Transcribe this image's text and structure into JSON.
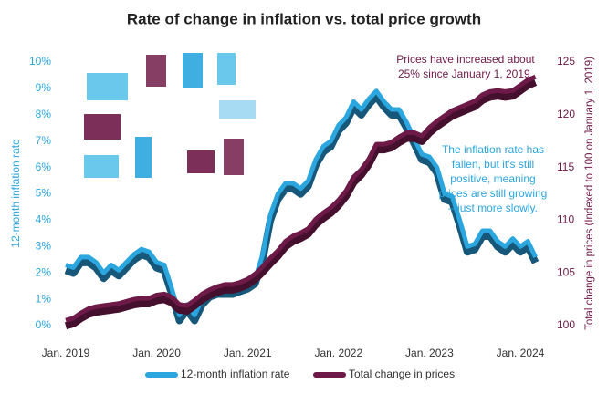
{
  "chart_data": {
    "type": "line",
    "title": "Rate of change in inflation vs. total price growth",
    "y_label": "12-month inflation rate",
    "y2_label": "Total change in prices (Indexed to 100 on January 1, 2019)",
    "categories": [
      "Jan. 2019",
      null,
      null,
      null,
      null,
      null,
      null,
      null,
      null,
      null,
      null,
      null,
      "Jan. 2020",
      null,
      null,
      null,
      null,
      null,
      null,
      null,
      null,
      null,
      null,
      null,
      "Jan. 2021",
      null,
      null,
      null,
      null,
      null,
      null,
      null,
      null,
      null,
      null,
      null,
      "Jan. 2022",
      null,
      null,
      null,
      null,
      null,
      null,
      null,
      null,
      null,
      null,
      null,
      "Jan. 2023",
      null,
      null,
      null,
      null,
      null,
      null,
      null,
      null,
      null,
      null,
      null,
      "Jan. 2024",
      null,
      null
    ],
    "series": [
      {
        "name": "12-month inflation rate",
        "color": "#2ba6de",
        "shadow": "#17587a",
        "axis": "y",
        "values": [
          2.3,
          2.2,
          2.6,
          2.6,
          2.4,
          2.0,
          2.3,
          2.1,
          2.4,
          2.7,
          2.9,
          2.8,
          2.4,
          2.3,
          1.4,
          0.4,
          0.8,
          0.4,
          1.0,
          1.3,
          1.4,
          1.4,
          1.4,
          1.5,
          1.6,
          1.8,
          2.7,
          4.2,
          5.0,
          5.4,
          5.4,
          5.2,
          5.5,
          6.3,
          6.8,
          7.0,
          7.6,
          7.9,
          8.5,
          8.2,
          8.6,
          8.9,
          8.5,
          8.2,
          8.2,
          7.7,
          7.1,
          6.5,
          6.4,
          6.0,
          5.0,
          4.9,
          4.0,
          3.0,
          3.1,
          3.6,
          3.6,
          3.2,
          3.0,
          3.3,
          3.0,
          3.2,
          2.6
        ]
      },
      {
        "name": "Total change in prices",
        "color": "#6e1a48",
        "shadow": "#45102d",
        "axis": "y2",
        "values": [
          100.5,
          100.7,
          101.2,
          101.6,
          101.8,
          101.9,
          102.0,
          102.1,
          102.3,
          102.5,
          102.6,
          102.6,
          102.9,
          103.0,
          102.7,
          102.0,
          101.9,
          102.4,
          103.0,
          103.4,
          103.7,
          103.9,
          103.9,
          104.1,
          104.4,
          104.9,
          105.6,
          106.4,
          107.1,
          108.0,
          108.5,
          108.8,
          109.2,
          110.1,
          110.7,
          111.2,
          111.9,
          112.8,
          114.1,
          114.8,
          115.8,
          117.2,
          117.2,
          117.4,
          117.9,
          118.3,
          118.3,
          118.0,
          118.8,
          119.4,
          119.9,
          120.4,
          120.7,
          121.0,
          121.3,
          121.9,
          122.2,
          122.3,
          122.2,
          122.3,
          122.8,
          123.3,
          123.6
        ]
      }
    ],
    "ylim": [
      0,
      10
    ],
    "yticks": [
      {
        "value": 0,
        "label": "0%"
      },
      {
        "value": 1,
        "label": "1%"
      },
      {
        "value": 2,
        "label": "2%"
      },
      {
        "value": 3,
        "label": "3%"
      },
      {
        "value": 4,
        "label": "4%"
      },
      {
        "value": 5,
        "label": "5%"
      },
      {
        "value": 6,
        "label": "6%"
      },
      {
        "value": 7,
        "label": "7%"
      },
      {
        "value": 8,
        "label": "8%"
      },
      {
        "value": 9,
        "label": "9%"
      },
      {
        "value": 10,
        "label": "10%"
      }
    ],
    "y2lim": [
      100,
      125
    ],
    "y2ticks": [
      100,
      105,
      110,
      115,
      120,
      125
    ],
    "annotations": [
      {
        "lines": [
          "Prices have increased about",
          "25% since January 1, 2019."
        ],
        "color": "#6e1a48"
      },
      {
        "lines": [
          "The inflation rate has",
          "fallen, but it's still",
          "positive, meaning",
          "prices are still growing",
          "– just more slowly."
        ],
        "color": "#2ba6de"
      }
    ],
    "legend": "bottom"
  }
}
